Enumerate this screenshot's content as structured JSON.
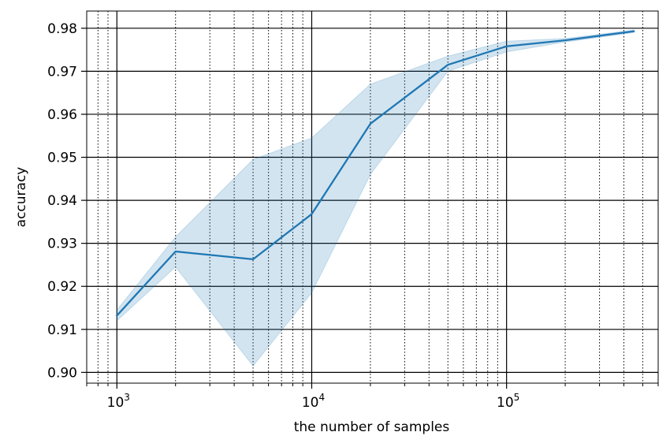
{
  "chart_data": {
    "type": "line",
    "title": "",
    "xlabel": "the number of samples",
    "ylabel": "accuracy",
    "x_scale": "log",
    "xlim": [
      700,
      600000
    ],
    "ylim": [
      0.8975,
      0.984
    ],
    "grid": {
      "major": "solid",
      "minor_x": "dotted"
    },
    "x_ticks": [
      {
        "value": 1000,
        "base": "10",
        "exp": "3"
      },
      {
        "value": 10000,
        "base": "10",
        "exp": "4"
      },
      {
        "value": 100000,
        "base": "10",
        "exp": "5"
      }
    ],
    "y_ticks": [
      {
        "value": 0.9,
        "label": "0.90"
      },
      {
        "value": 0.91,
        "label": "0.91"
      },
      {
        "value": 0.92,
        "label": "0.92"
      },
      {
        "value": 0.93,
        "label": "0.93"
      },
      {
        "value": 0.94,
        "label": "0.94"
      },
      {
        "value": 0.95,
        "label": "0.95"
      },
      {
        "value": 0.96,
        "label": "0.96"
      },
      {
        "value": 0.97,
        "label": "0.97"
      },
      {
        "value": 0.98,
        "label": "0.98"
      }
    ],
    "series": [
      {
        "color": "#1f77b4",
        "band_color": "#1f77b4",
        "x": [
          1000,
          2000,
          5000,
          10000,
          20000,
          50000,
          100000,
          200000,
          450000
        ],
        "y": [
          0.9132,
          0.9281,
          0.9263,
          0.9368,
          0.9578,
          0.9715,
          0.9758,
          0.9772,
          0.9793
        ],
        "lower": [
          0.912,
          0.9245,
          0.9015,
          0.9185,
          0.946,
          0.97,
          0.9745,
          0.9768,
          0.979
        ],
        "upper": [
          0.9145,
          0.9315,
          0.9495,
          0.9545,
          0.967,
          0.9735,
          0.977,
          0.9776,
          0.9796
        ]
      }
    ]
  }
}
